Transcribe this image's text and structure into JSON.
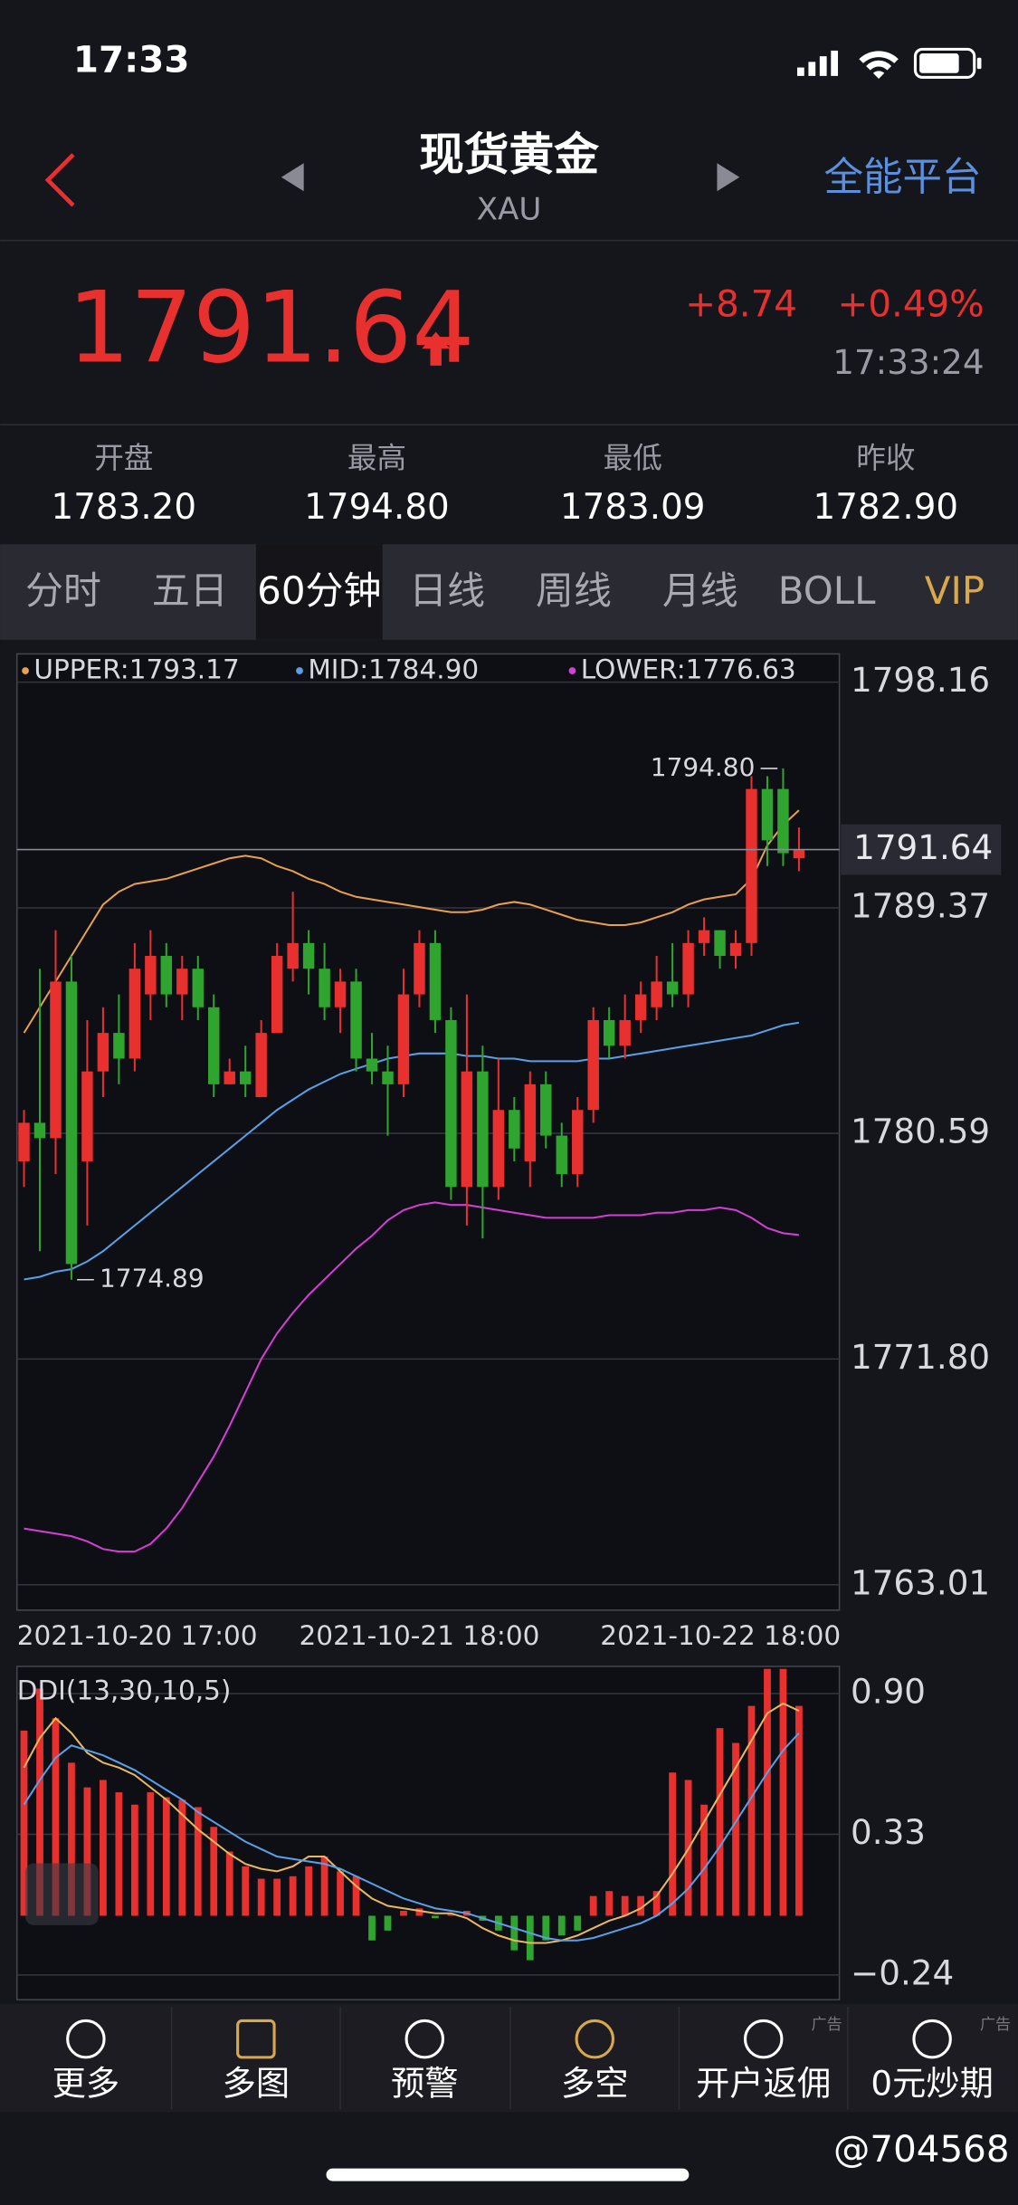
{
  "status": {
    "time": "17:33"
  },
  "header": {
    "title": "现货黄金",
    "subtitle": "XAU",
    "right": "全能平台"
  },
  "quote": {
    "price": "1791.64",
    "change": "+8.74",
    "change_pct": "+0.49%",
    "time": "17:33:24"
  },
  "stats": [
    {
      "label": "开盘",
      "value": "1783.20"
    },
    {
      "label": "最高",
      "value": "1794.80"
    },
    {
      "label": "最低",
      "value": "1783.09"
    },
    {
      "label": "昨收",
      "value": "1782.90"
    }
  ],
  "tabs": [
    "分时",
    "五日",
    "60分钟",
    "日线",
    "周线",
    "月线",
    "BOLL",
    "VIP"
  ],
  "chart_data": [
    {
      "type": "candlestick",
      "categories": [
        "2021-10-20 17:00",
        null,
        null,
        null,
        null,
        null,
        null,
        null,
        null,
        null,
        null,
        null,
        null,
        null,
        null,
        null,
        null,
        null,
        null,
        null,
        null,
        null,
        null,
        null,
        null,
        "2021-10-21 18:00",
        null,
        null,
        null,
        null,
        null,
        null,
        null,
        null,
        null,
        null,
        null,
        null,
        null,
        null,
        null,
        null,
        null,
        null,
        null,
        null,
        null,
        null,
        null,
        "2021-10-22 18:00"
      ],
      "open": [
        1779.5,
        1781.0,
        1780.4,
        1786.5,
        1779.5,
        1783.0,
        1784.5,
        1783.5,
        1786.0,
        1787.5,
        1786.0,
        1787.0,
        1785.5,
        1782.5,
        1783.0,
        1782.0,
        1784.5,
        1787.0,
        1788.0,
        1787.0,
        1785.5,
        1786.5,
        1783.5,
        1783.0,
        1782.5,
        1786.0,
        1788.0,
        1785.0,
        1778.5,
        1783.0,
        1778.5,
        1781.5,
        1779.5,
        1782.5,
        1780.5,
        1779.0,
        1781.5,
        1785.0,
        1784.0,
        1785.0,
        1785.5,
        1786.5,
        1786.0,
        1788.0,
        1788.5,
        1787.5,
        1788.0,
        1794.0,
        1794.0,
        1791.3
      ],
      "high": [
        1781.5,
        1787.0,
        1788.5,
        1787.5,
        1785.0,
        1785.5,
        1786.0,
        1788.0,
        1788.5,
        1788.0,
        1787.5,
        1787.5,
        1786.0,
        1783.5,
        1784.0,
        1785.0,
        1788.0,
        1790.0,
        1788.5,
        1788.0,
        1787.0,
        1787.0,
        1784.5,
        1784.0,
        1787.0,
        1788.5,
        1788.5,
        1785.5,
        1786.0,
        1784.0,
        1783.5,
        1782.0,
        1783.0,
        1783.0,
        1781.0,
        1782.0,
        1785.5,
        1785.5,
        1786.0,
        1786.5,
        1787.5,
        1788.0,
        1788.5,
        1789.0,
        1788.5,
        1788.5,
        1794.5,
        1794.5,
        1794.8,
        1792.5
      ],
      "low": [
        1778.5,
        1776.0,
        1779.0,
        1774.89,
        1777.0,
        1782.0,
        1782.5,
        1783.0,
        1785.0,
        1785.5,
        1785.0,
        1785.0,
        1782.0,
        1782.5,
        1782.0,
        1782.0,
        1784.5,
        1786.5,
        1786.0,
        1785.0,
        1784.5,
        1783.0,
        1782.5,
        1780.5,
        1782.0,
        1785.5,
        1784.5,
        1778.0,
        1777.0,
        1776.5,
        1778.0,
        1779.5,
        1778.5,
        1780.0,
        1778.5,
        1778.5,
        1781.0,
        1783.5,
        1783.5,
        1784.5,
        1785.0,
        1785.5,
        1785.5,
        1787.5,
        1787.0,
        1787.0,
        1787.5,
        1791.0,
        1791.0,
        1790.8
      ],
      "close": [
        1781.0,
        1780.4,
        1786.5,
        1775.5,
        1783.0,
        1784.5,
        1783.5,
        1787.0,
        1787.5,
        1786.0,
        1787.0,
        1785.5,
        1782.5,
        1783.0,
        1782.5,
        1784.5,
        1787.5,
        1788.0,
        1787.0,
        1785.5,
        1786.5,
        1783.5,
        1783.0,
        1782.5,
        1786.0,
        1788.0,
        1785.0,
        1778.5,
        1783.0,
        1778.5,
        1781.5,
        1780.0,
        1782.5,
        1780.5,
        1779.0,
        1781.5,
        1785.0,
        1784.0,
        1785.0,
        1786.0,
        1786.5,
        1786.0,
        1788.0,
        1788.5,
        1787.5,
        1788.0,
        1794.0,
        1792.0,
        1791.5,
        1791.64
      ],
      "up_color": "#e8312f",
      "down_color": "#2fa52f",
      "series": [
        {
          "name": "UPPER:1793.17",
          "color": "#e8a04c",
          "values": [
            1784.5,
            1785.5,
            1786.5,
            1787.5,
            1788.5,
            1789.5,
            1790.0,
            1790.3,
            1790.4,
            1790.5,
            1790.7,
            1790.9,
            1791.1,
            1791.3,
            1791.4,
            1791.3,
            1791.0,
            1790.8,
            1790.5,
            1790.3,
            1790.0,
            1789.8,
            1789.7,
            1789.6,
            1789.5,
            1789.4,
            1789.3,
            1789.2,
            1789.2,
            1789.3,
            1789.5,
            1789.6,
            1789.5,
            1789.3,
            1789.1,
            1788.9,
            1788.8,
            1788.7,
            1788.7,
            1788.8,
            1789.0,
            1789.2,
            1789.5,
            1789.7,
            1789.8,
            1789.9,
            1790.5,
            1791.8,
            1792.6,
            1793.17
          ]
        },
        {
          "name": "MID:1784.90",
          "color": "#5aa0e6",
          "values": [
            1774.9,
            1775.0,
            1775.2,
            1775.3,
            1775.6,
            1776.0,
            1776.5,
            1777.0,
            1777.5,
            1778.0,
            1778.5,
            1779.0,
            1779.5,
            1780.0,
            1780.5,
            1781.0,
            1781.5,
            1781.9,
            1782.3,
            1782.6,
            1782.9,
            1783.1,
            1783.3,
            1783.5,
            1783.6,
            1783.7,
            1783.7,
            1783.7,
            1783.6,
            1783.6,
            1783.5,
            1783.5,
            1783.4,
            1783.4,
            1783.4,
            1783.4,
            1783.5,
            1783.5,
            1783.6,
            1783.7,
            1783.8,
            1783.9,
            1784.0,
            1784.1,
            1784.2,
            1784.3,
            1784.4,
            1784.6,
            1784.8,
            1784.9
          ]
        },
        {
          "name": "LOWER:1776.63",
          "color": "#d43fd4",
          "values": [
            1765.2,
            1765.1,
            1765.0,
            1764.9,
            1764.7,
            1764.4,
            1764.3,
            1764.3,
            1764.6,
            1765.2,
            1766.0,
            1767.0,
            1768.0,
            1769.2,
            1770.5,
            1771.8,
            1772.8,
            1773.6,
            1774.3,
            1774.9,
            1775.5,
            1776.1,
            1776.6,
            1777.2,
            1777.6,
            1777.8,
            1777.9,
            1777.8,
            1777.8,
            1777.7,
            1777.6,
            1777.5,
            1777.4,
            1777.3,
            1777.3,
            1777.3,
            1777.3,
            1777.4,
            1777.4,
            1777.4,
            1777.5,
            1777.5,
            1777.6,
            1777.6,
            1777.7,
            1777.6,
            1777.3,
            1776.9,
            1776.7,
            1776.63
          ]
        }
      ],
      "ylim": [
        1762.02,
        1799.26
      ],
      "yticks": [
        1763.01,
        {
          "value": 1771.8,
          "label": "1771.80"
        },
        1780.59,
        1789.37,
        1798.16
      ],
      "grid": true,
      "last_price": 1791.64,
      "high_label": {
        "value": 1794.8,
        "label": "1794.80"
      },
      "low_label": 1774.89
    },
    {
      "type": "bar",
      "title": "DDI(13,30,10,5)",
      "values": [
        0.75,
        0.92,
        0.8,
        0.62,
        0.52,
        0.55,
        0.5,
        0.45,
        0.5,
        0.48,
        0.47,
        0.44,
        0.36,
        0.26,
        0.2,
        0.15,
        0.15,
        0.16,
        0.2,
        0.24,
        0.18,
        0.16,
        -0.1,
        -0.06,
        0.02,
        0.03,
        -0.01,
        0.01,
        0.02,
        -0.02,
        -0.06,
        -0.14,
        -0.18,
        -0.1,
        -0.08,
        -0.06,
        0.08,
        0.1,
        0.08,
        0.08,
        0.1,
        0.58,
        0.55,
        0.45,
        0.76,
        0.7,
        0.85,
        1.0,
        1.0,
        0.85
      ],
      "up_color": "#e8312f",
      "down_color": "#2fa52f",
      "series": [
        {
          "color": "#e8b860",
          "values": [
            0.6,
            0.72,
            0.8,
            0.74,
            0.66,
            0.62,
            0.6,
            0.57,
            0.52,
            0.47,
            0.41,
            0.35,
            0.3,
            0.25,
            0.21,
            0.19,
            0.18,
            0.2,
            0.24,
            0.24,
            0.18,
            0.12,
            0.07,
            0.04,
            0.03,
            0.02,
            0.01,
            0.01,
            -0.01,
            -0.05,
            -0.08,
            -0.1,
            -0.11,
            -0.11,
            -0.1,
            -0.08,
            -0.05,
            -0.02,
            0.0,
            0.03,
            0.08,
            0.17,
            0.27,
            0.38,
            0.49,
            0.6,
            0.71,
            0.82,
            0.86,
            0.83
          ]
        },
        {
          "color": "#5aa0e6",
          "values": [
            0.45,
            0.55,
            0.64,
            0.69,
            0.67,
            0.65,
            0.62,
            0.59,
            0.55,
            0.51,
            0.47,
            0.42,
            0.38,
            0.34,
            0.3,
            0.27,
            0.24,
            0.23,
            0.22,
            0.21,
            0.19,
            0.16,
            0.13,
            0.1,
            0.07,
            0.05,
            0.03,
            0.02,
            0.01,
            -0.01,
            -0.03,
            -0.05,
            -0.07,
            -0.09,
            -0.1,
            -0.1,
            -0.09,
            -0.07,
            -0.05,
            -0.03,
            0.0,
            0.05,
            0.11,
            0.19,
            0.28,
            0.38,
            0.48,
            0.58,
            0.67,
            0.74
          ]
        }
      ],
      "ylim": [
        -0.34,
        1.01
      ],
      "yticks": [
        {
          "value": 0.9,
          "label": "0.90"
        },
        0.33,
        {
          "value": -0.24,
          "label": "−0.24"
        }
      ],
      "grid": true
    }
  ],
  "nav": [
    {
      "label": "更多"
    },
    {
      "label": "多图"
    },
    {
      "label": "预警"
    },
    {
      "label": "多空"
    },
    {
      "label": "开户返佣",
      "ad": "广告"
    },
    {
      "label": "0元炒期",
      "ad": "广告"
    }
  ],
  "watermark": "@704568"
}
